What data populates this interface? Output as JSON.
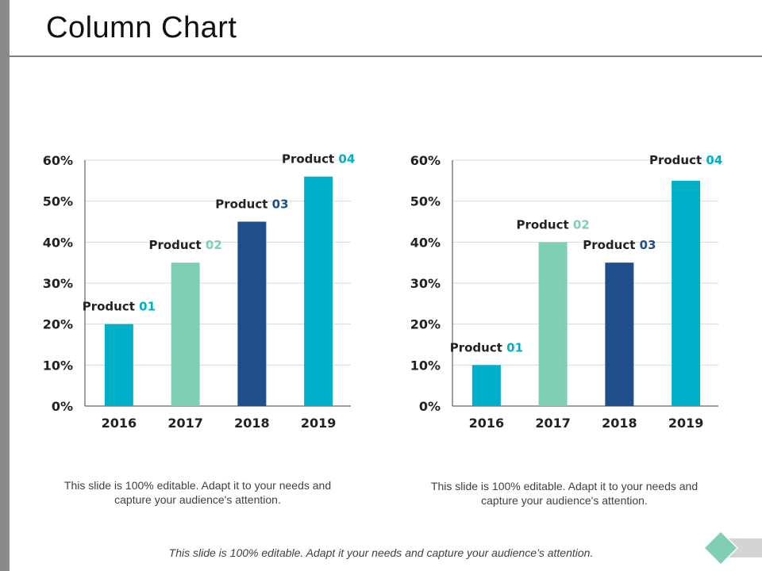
{
  "slide": {
    "title": "Column Chart",
    "caption_left": "This slide is 100% editable. Adapt it to your needs and capture your audience's attention.",
    "caption_right": "This slide is 100% editable. Adapt it to your needs and capture your audience's attention.",
    "footer": "This slide is 100% editable. Adapt it your needs and capture your audience’s attention."
  },
  "colors": {
    "teal": "#00b0c8",
    "mint": "#7ecfb4",
    "navy": "#1f4e8a",
    "grid": "#d9d9d9",
    "axis": "#404040",
    "deco_diamond": "#7ecfb4",
    "deco_tail": "#d4d4d4"
  },
  "chart_data": [
    {
      "type": "bar",
      "title": "",
      "xlabel": "",
      "ylabel": "",
      "categories": [
        "2016",
        "2017",
        "2018",
        "2019"
      ],
      "values": [
        20,
        35,
        45,
        56
      ],
      "bar_labels": [
        {
          "prefix": "Product",
          "number": "01"
        },
        {
          "prefix": "Product",
          "number": "02"
        },
        {
          "prefix": "Product",
          "number": "03"
        },
        {
          "prefix": "Product",
          "number": "04"
        }
      ],
      "bar_colors": [
        "teal",
        "mint",
        "navy",
        "teal"
      ],
      "yticks": [
        "0%",
        "10%",
        "20%",
        "30%",
        "40%",
        "50%",
        "60%"
      ],
      "ylim": [
        0,
        60
      ],
      "grid": true
    },
    {
      "type": "bar",
      "title": "",
      "xlabel": "",
      "ylabel": "",
      "categories": [
        "2016",
        "2017",
        "2018",
        "2019"
      ],
      "values": [
        10,
        40,
        35,
        55
      ],
      "bar_labels": [
        {
          "prefix": "Product",
          "number": "01"
        },
        {
          "prefix": "Product",
          "number": "02"
        },
        {
          "prefix": "Product",
          "number": "03"
        },
        {
          "prefix": "Product",
          "number": "04"
        }
      ],
      "bar_colors": [
        "teal",
        "mint",
        "navy",
        "teal"
      ],
      "yticks": [
        "0%",
        "10%",
        "20%",
        "30%",
        "40%",
        "50%",
        "60%"
      ],
      "ylim": [
        0,
        60
      ],
      "grid": true
    }
  ]
}
